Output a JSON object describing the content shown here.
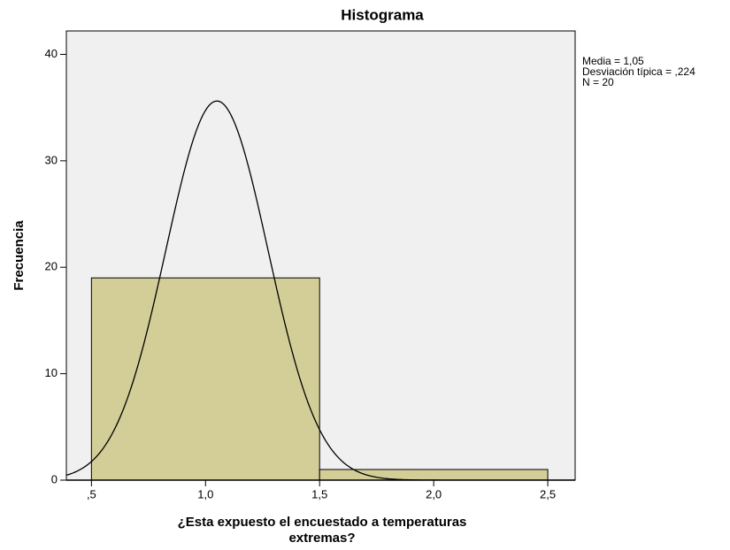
{
  "chart_data": {
    "type": "histogram",
    "title": "Histograma",
    "xlabel": [
      "¿Esta expuesto el encuestado a temperaturas",
      "extremas?"
    ],
    "ylabel": "Frecuencia",
    "bins": [
      0.5,
      1.5,
      2.5
    ],
    "counts": [
      19,
      1
    ],
    "color": "#d3ce98",
    "xlim": [
      0.39,
      2.62
    ],
    "ylim": [
      0,
      42.2
    ],
    "xticks": [
      {
        "value": 0.5,
        "label": ",5"
      },
      {
        "value": 1.0,
        "label": "1,0"
      },
      {
        "value": 1.5,
        "label": "1,5"
      },
      {
        "value": 2.0,
        "label": "2,0"
      },
      {
        "value": 2.5,
        "label": "2,5"
      }
    ],
    "yticks": [
      0,
      10,
      20,
      30,
      40
    ],
    "normal_curve": {
      "mean": 1.05,
      "sd": 0.224,
      "n": 20
    },
    "annotations": [
      "Media = 1,05",
      "Desviación típica = ,224",
      "N = 20"
    ]
  }
}
